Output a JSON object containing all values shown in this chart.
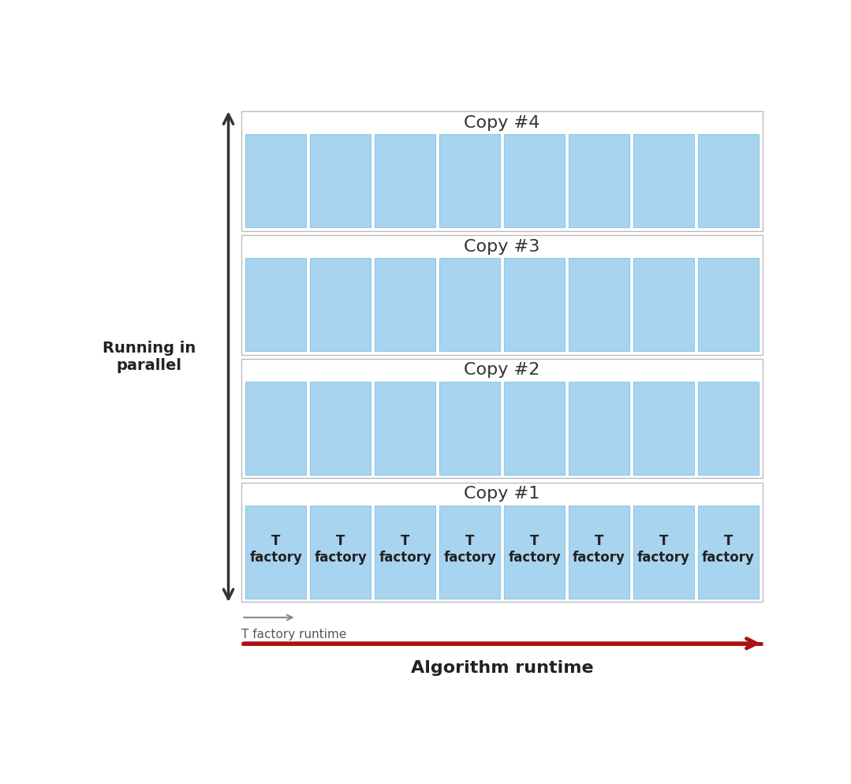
{
  "num_copies": 4,
  "num_blocks": 8,
  "copy_labels": [
    "Copy #4",
    "Copy #3",
    "Copy #2",
    "Copy #1"
  ],
  "block_color": "#a8d4f0",
  "block_edge_color": "#8ec8e8",
  "outer_box_edge_color": "#bbbbbb",
  "outer_box_facecolor": "#ffffff",
  "factory_label_top": "T",
  "factory_label_bottom": "factory",
  "copy_label_fontsize": 16,
  "factory_fontsize": 12,
  "xlabel_fontsize": 16,
  "xlabel": "Algorithm runtime",
  "ylabel": "Running in\nparallel",
  "ylabel_fontsize": 14,
  "t_factory_label": "T factory runtime",
  "t_factory_fontsize": 11,
  "background_color": "#ffffff",
  "arrow_color_algo": "#aa1111",
  "arrow_color_parallel": "#333333",
  "arrow_color_t_factory": "#888888",
  "text_color_copy": "#333333",
  "text_color_factory": "#222222"
}
